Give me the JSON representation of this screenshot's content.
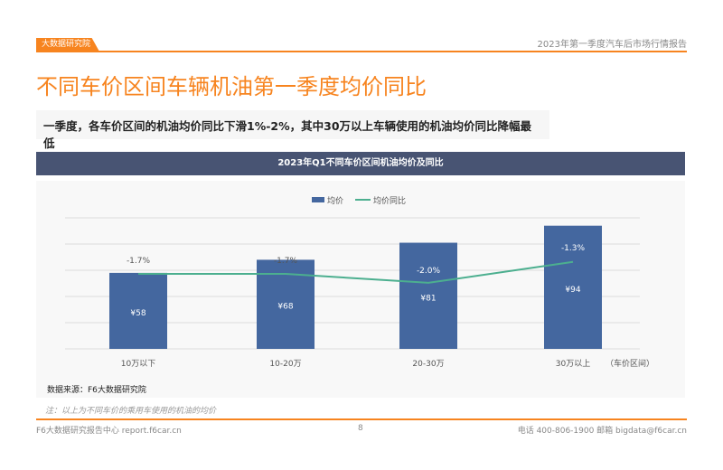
{
  "header": {
    "logo_text": "大数据研究院",
    "report_title": "2023年第一季度汽车后市场行情报告"
  },
  "page_title": "不同车价区间车辆机油第一季度均价同比",
  "summary": "一季度，各车价区间的机油均价同比下滑1%-2%，其中30万以上车辆使用的机油均价同比降幅最低",
  "chart_data": {
    "type": "bar",
    "title": "2023年Q1不同车价区间机油均价及同比",
    "categories": [
      "10万以下",
      "10-20万",
      "20-30万",
      "30万以上"
    ],
    "xlabel": "（车价区间）",
    "series": [
      {
        "name": "均价",
        "type": "bar",
        "values": [
          58,
          68,
          81,
          94
        ],
        "labels": [
          "¥58",
          "¥68",
          "¥81",
          "¥94"
        ],
        "color": "#44679f"
      },
      {
        "name": "均价同比",
        "type": "line",
        "values": [
          -1.7,
          -1.7,
          -2.0,
          -1.3
        ],
        "labels": [
          "-1.7%",
          "-1.7%",
          "-2.0%",
          "-1.3%"
        ],
        "color": "#4caf8f"
      }
    ],
    "ylim": [
      0,
      100
    ],
    "legend": "top-center",
    "grid": true
  },
  "source": "数据来源：F6大数据研究院",
  "note": "注：以上为不同车价的乘用车使用的机油的均价",
  "footer": {
    "left": "F6大数据研究报告中心 report.f6car.cn",
    "page": "8",
    "right": "电话 400-806-1900  邮箱 bigdata@f6car.cn"
  }
}
